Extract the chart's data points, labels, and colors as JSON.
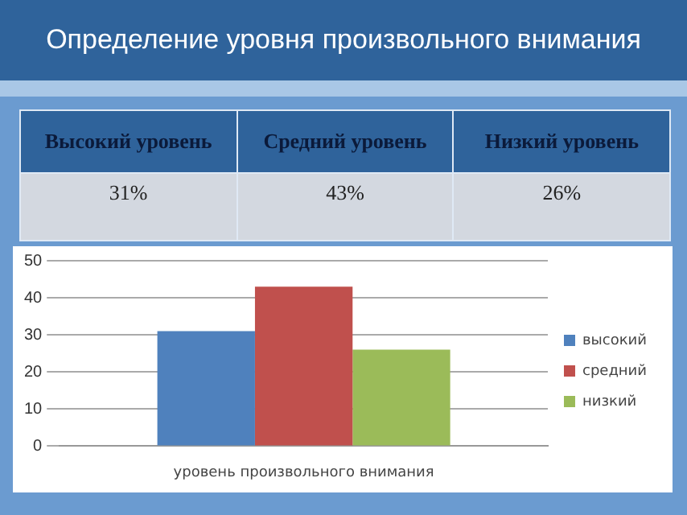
{
  "chart_data": {
    "type": "bar",
    "title": "Определение уровня произвольного внимания",
    "categories": [
      "уровень произвольного внимания"
    ],
    "series": [
      {
        "name": "высокий",
        "color": "#4f81bd",
        "values": [
          31
        ]
      },
      {
        "name": "средний",
        "color": "#c0504d",
        "values": [
          43
        ]
      },
      {
        "name": "низкий",
        "color": "#9bbb59",
        "values": [
          26
        ]
      }
    ],
    "annotations": [
      "Высокий уровень",
      "Средний уровень",
      "Низкий уровень",
      "31%",
      "43%",
      "26%"
    ],
    "ylim": [
      0,
      50
    ],
    "yticks": [
      0,
      10,
      20,
      30,
      40,
      50
    ],
    "grid": "y",
    "legend": "right"
  }
}
